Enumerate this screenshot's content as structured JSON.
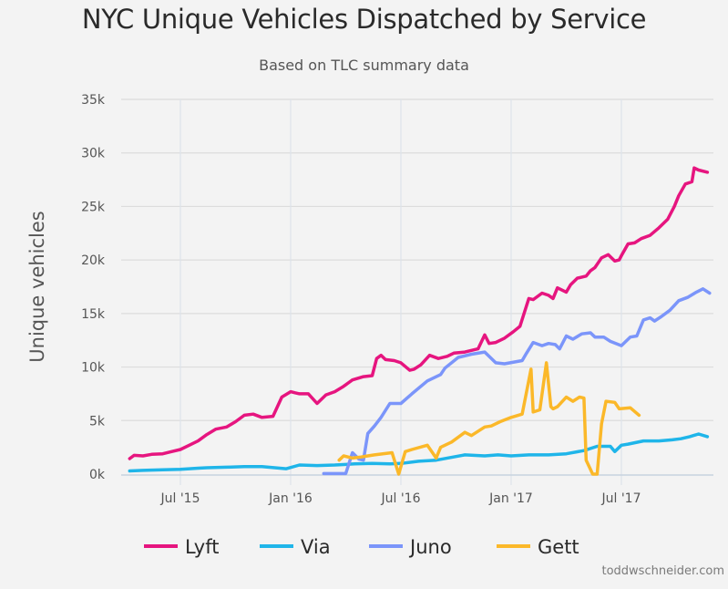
{
  "chart_data": {
    "type": "line",
    "title": "NYC Unique Vehicles Dispatched by Service",
    "subtitle": "Based on TLC summary data",
    "xlabel": "",
    "ylabel": "Unique vehicles",
    "x_unit": "fractional year (2015.5 = Jul 2015)",
    "xlim": [
      2015.24,
      2017.93
    ],
    "ylim": [
      0,
      35000
    ],
    "yticks": [
      0,
      5000,
      10000,
      15000,
      20000,
      25000,
      30000,
      35000
    ],
    "ytick_labels": [
      "0k",
      "5k",
      "10k",
      "15k",
      "20k",
      "25k",
      "30k",
      "35k"
    ],
    "xticks": [
      2015.5,
      2016.0,
      2016.5,
      2017.0,
      2017.5
    ],
    "xtick_labels": [
      "Jul '15",
      "Jan '16",
      "Jul '16",
      "Jan '17",
      "Jul '17"
    ],
    "grid": true,
    "legend_position": "bottom",
    "series": [
      {
        "name": "Lyft",
        "color": "#e6157f",
        "x": [
          2015.27,
          2015.29,
          2015.33,
          2015.37,
          2015.42,
          2015.46,
          2015.5,
          2015.54,
          2015.58,
          2015.62,
          2015.66,
          2015.71,
          2015.75,
          2015.79,
          2015.83,
          2015.87,
          2015.92,
          2015.96,
          2016.0,
          2016.02,
          2016.04,
          2016.08,
          2016.12,
          2016.16,
          2016.2,
          2016.24,
          2016.28,
          2016.33,
          2016.37,
          2016.39,
          2016.41,
          2016.43,
          2016.47,
          2016.5,
          2016.54,
          2016.56,
          2016.59,
          2016.63,
          2016.67,
          2016.71,
          2016.74,
          2016.79,
          2016.85,
          2016.88,
          2016.9,
          2016.93,
          2016.97,
          2017.01,
          2017.04,
          2017.08,
          2017.1,
          2017.14,
          2017.17,
          2017.19,
          2017.21,
          2017.25,
          2017.27,
          2017.3,
          2017.34,
          2017.36,
          2017.38,
          2017.41,
          2017.44,
          2017.47,
          2017.49,
          2017.5,
          2017.53,
          2017.56,
          2017.59,
          2017.63,
          2017.67,
          2017.71,
          2017.74,
          2017.76,
          2017.79,
          2017.82,
          2017.83,
          2017.85,
          2017.89
        ],
        "values": [
          1450,
          1750,
          1700,
          1850,
          1900,
          2100,
          2300,
          2700,
          3100,
          3700,
          4200,
          4400,
          4900,
          5500,
          5600,
          5300,
          5400,
          7200,
          7700,
          7600,
          7500,
          7500,
          6600,
          7400,
          7700,
          8200,
          8800,
          9100,
          9200,
          10800,
          11100,
          10700,
          10600,
          10400,
          9700,
          9800,
          10200,
          11100,
          10800,
          11000,
          11300,
          11400,
          11700,
          13000,
          12200,
          12300,
          12700,
          13300,
          13800,
          16400,
          16300,
          16900,
          16700,
          16400,
          17400,
          17000,
          17700,
          18300,
          18500,
          19000,
          19300,
          20200,
          20500,
          19900,
          20000,
          20400,
          21500,
          21600,
          22000,
          22300,
          23000,
          23800,
          25000,
          26000,
          27100,
          27300,
          28600,
          28400,
          28200
        ]
      },
      {
        "name": "Via",
        "color": "#1fb5e9",
        "x": [
          2015.27,
          2015.33,
          2015.42,
          2015.5,
          2015.58,
          2015.62,
          2015.71,
          2015.79,
          2015.87,
          2015.98,
          2016.04,
          2016.12,
          2016.2,
          2016.29,
          2016.37,
          2016.45,
          2016.5,
          2016.58,
          2016.66,
          2016.79,
          2016.88,
          2016.94,
          2017.0,
          2017.08,
          2017.17,
          2017.25,
          2017.33,
          2017.39,
          2017.45,
          2017.47,
          2017.5,
          2017.53,
          2017.6,
          2017.67,
          2017.73,
          2017.77,
          2017.81,
          2017.85,
          2017.89
        ],
        "values": [
          300,
          350,
          400,
          450,
          550,
          600,
          650,
          700,
          700,
          500,
          850,
          800,
          850,
          950,
          1000,
          950,
          1000,
          1200,
          1300,
          1800,
          1700,
          1800,
          1700,
          1800,
          1800,
          1900,
          2200,
          2600,
          2600,
          2100,
          2700,
          2800,
          3100,
          3100,
          3200,
          3300,
          3500,
          3750,
          3500
        ]
      },
      {
        "name": "Juno",
        "color": "#7b95fa",
        "x": [
          2016.15,
          2016.25,
          2016.28,
          2016.31,
          2016.33,
          2016.35,
          2016.38,
          2016.41,
          2016.45,
          2016.5,
          2016.55,
          2016.62,
          2016.68,
          2016.7,
          2016.76,
          2016.82,
          2016.88,
          2016.93,
          2016.97,
          2017.05,
          2017.07,
          2017.1,
          2017.14,
          2017.17,
          2017.2,
          2017.22,
          2017.25,
          2017.28,
          2017.32,
          2017.36,
          2017.38,
          2017.42,
          2017.45,
          2017.5,
          2017.54,
          2017.57,
          2017.6,
          2017.63,
          2017.65,
          2017.68,
          2017.72,
          2017.76,
          2017.8,
          2017.84,
          2017.87,
          2017.9
        ],
        "values": [
          50,
          50,
          2000,
          1400,
          1300,
          3800,
          4500,
          5300,
          6600,
          6600,
          7500,
          8700,
          9300,
          9900,
          10900,
          11200,
          11400,
          10400,
          10300,
          10600,
          11300,
          12300,
          12000,
          12200,
          12100,
          11700,
          12900,
          12600,
          13100,
          13200,
          12800,
          12800,
          12400,
          12000,
          12800,
          12900,
          14400,
          14600,
          14300,
          14700,
          15300,
          16200,
          16500,
          17000,
          17300,
          16900
        ]
      },
      {
        "name": "Gett",
        "color": "#fbb829",
        "x": [
          2016.22,
          2016.24,
          2016.28,
          2016.32,
          2016.35,
          2016.38,
          2016.46,
          2016.49,
          2016.52,
          2016.55,
          2016.62,
          2016.66,
          2016.68,
          2016.73,
          2016.79,
          2016.82,
          2016.88,
          2016.91,
          2016.95,
          2017.0,
          2017.05,
          2017.09,
          2017.1,
          2017.13,
          2017.16,
          2017.18,
          2017.19,
          2017.21,
          2017.25,
          2017.28,
          2017.31,
          2017.33,
          2017.34,
          2017.37,
          2017.39,
          2017.41,
          2017.43,
          2017.47,
          2017.49,
          2017.54,
          2017.58
        ],
        "values": [
          1300,
          1700,
          1500,
          1600,
          1700,
          1800,
          2000,
          0,
          2100,
          2300,
          2700,
          1500,
          2500,
          3000,
          3900,
          3600,
          4400,
          4500,
          4900,
          5300,
          5600,
          9800,
          5800,
          6000,
          10400,
          6300,
          6100,
          6300,
          7200,
          6800,
          7200,
          7100,
          1300,
          0,
          0,
          4700,
          6800,
          6700,
          6100,
          6200,
          5500
        ]
      }
    ]
  },
  "credit": "toddwschneider.com"
}
